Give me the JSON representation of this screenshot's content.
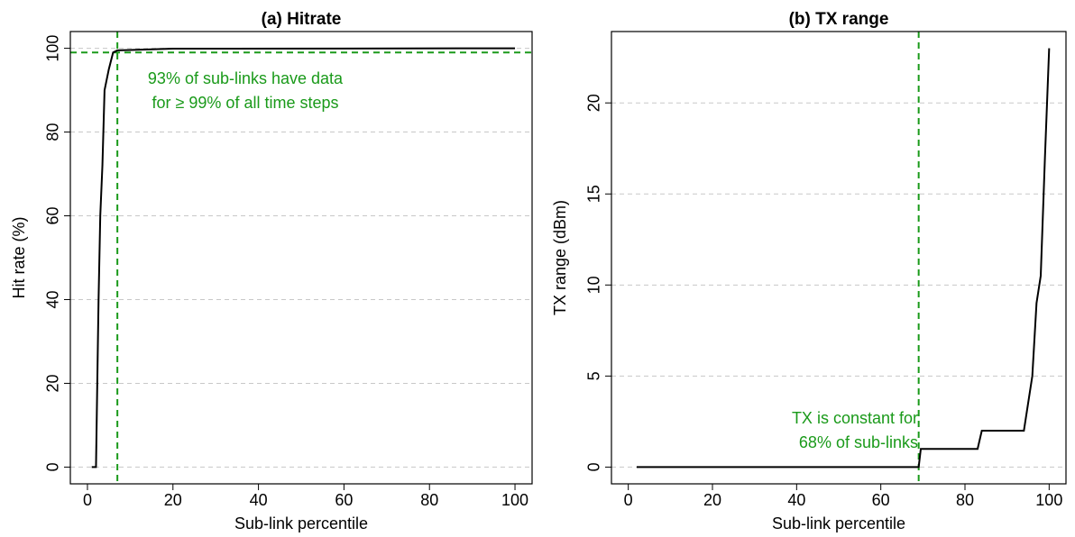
{
  "chart_data": [
    {
      "type": "line",
      "title": "(a) Hitrate",
      "x_label": "Sub-link percentile",
      "y_label": "Hit rate (%)",
      "x": [
        1,
        2,
        2.3,
        2.6,
        3,
        3.5,
        4,
        5,
        6,
        7,
        10,
        20,
        100
      ],
      "values": [
        0,
        0,
        20,
        40,
        60,
        72,
        90,
        95,
        99,
        99.5,
        99.6,
        99.9,
        100
      ],
      "color": "#000000",
      "xlim": [
        -4,
        104
      ],
      "ylim": [
        -4,
        104
      ],
      "xticks": [
        0,
        20,
        40,
        60,
        80,
        100
      ],
      "yticks": [
        0,
        20,
        40,
        60,
        80,
        100
      ],
      "grid": true,
      "vline": 7,
      "hline": 99,
      "ref_color": "#1a9a1a",
      "annotation": [
        "93% of sub-links have data",
        "for ≥ 99% of all time steps"
      ]
    },
    {
      "type": "line",
      "title": "(b) TX range",
      "x_label": "Sub-link percentile",
      "y_label": "TX range (dBm)",
      "x": [
        2,
        69,
        69.5,
        83,
        84,
        94,
        95,
        96,
        97,
        98,
        99,
        100
      ],
      "values": [
        0,
        0,
        1,
        1,
        2,
        2,
        3.5,
        5,
        9,
        10.5,
        17,
        23
      ],
      "color": "#000000",
      "xlim": [
        -4,
        104
      ],
      "ylim": [
        -0.92,
        23.92
      ],
      "xticks": [
        0,
        20,
        40,
        60,
        80,
        100
      ],
      "yticks": [
        0,
        5,
        10,
        15,
        20
      ],
      "grid": true,
      "vline": 69,
      "ref_color": "#1a9a1a",
      "annotation": [
        "TX is constant for",
        "68% of sub-links"
      ]
    }
  ]
}
